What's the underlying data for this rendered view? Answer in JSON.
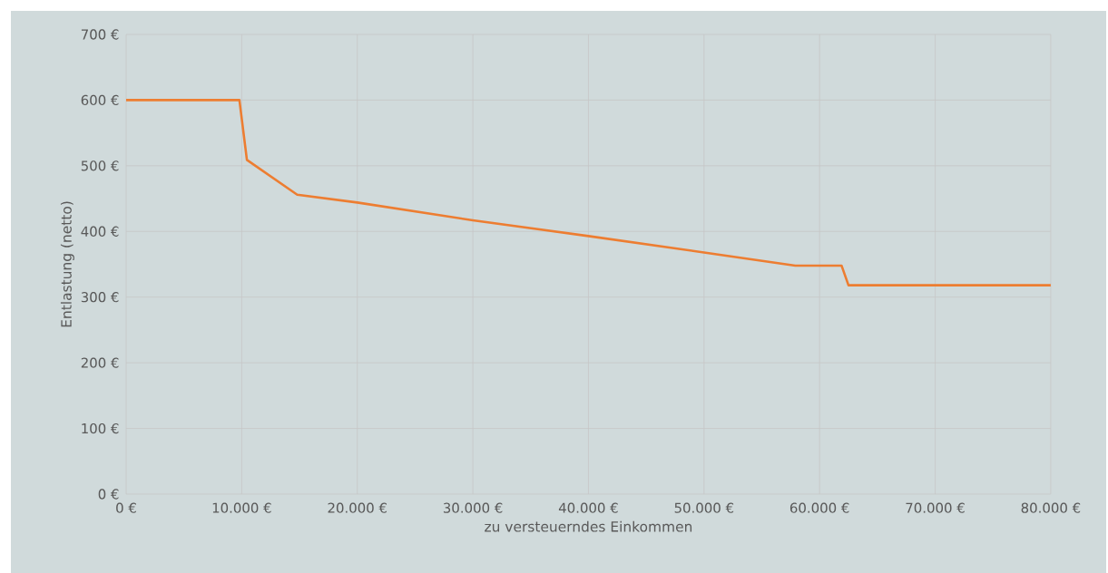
{
  "chart_data": {
    "type": "line",
    "xlabel": "zu versteuerndes Einkommen",
    "ylabel": "Entlastung (netto)",
    "x": [
      0,
      9800,
      10450,
      14800,
      20000,
      30000,
      40000,
      50000,
      57900,
      61900,
      62500,
      80000
    ],
    "series": [
      {
        "color": "#ed7d31",
        "values": [
          600,
          600,
          509,
          456,
          444,
          417,
          393,
          368,
          348,
          348,
          318,
          318
        ]
      }
    ],
    "xlim": [
      0,
      80000
    ],
    "ylim": [
      0,
      700
    ],
    "xticks": [
      {
        "value": 0,
        "label": "0 €"
      },
      {
        "value": 10000,
        "label": "10.000 €"
      },
      {
        "value": 20000,
        "label": "20.000 €"
      },
      {
        "value": 30000,
        "label": "30.000 €"
      },
      {
        "value": 40000,
        "label": "40.000 €"
      },
      {
        "value": 50000,
        "label": "50.000 €"
      },
      {
        "value": 60000,
        "label": "60.000 €"
      },
      {
        "value": 70000,
        "label": "70.000 €"
      },
      {
        "value": 80000,
        "label": "80.000 €"
      }
    ],
    "yticks": [
      {
        "value": 0,
        "label": "0 €"
      },
      {
        "value": 100,
        "label": "100 €"
      },
      {
        "value": 200,
        "label": "200 €"
      },
      {
        "value": 300,
        "label": "300 €"
      },
      {
        "value": 400,
        "label": "400 €"
      },
      {
        "value": 500,
        "label": "500 €"
      },
      {
        "value": 600,
        "label": "600 €"
      },
      {
        "value": 700,
        "label": "700 €"
      }
    ],
    "grid": true,
    "marker": "none",
    "line_style": "solid"
  }
}
